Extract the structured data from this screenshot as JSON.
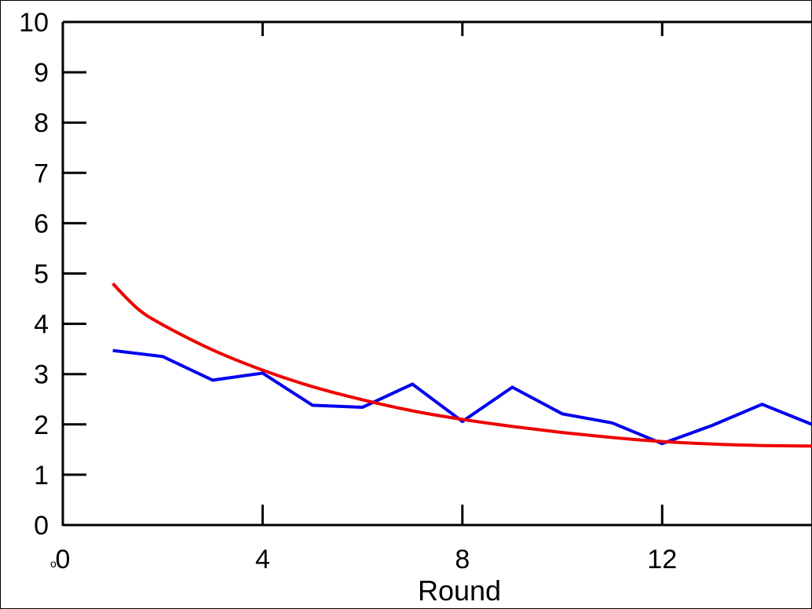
{
  "chart_data": {
    "type": "line",
    "title": "",
    "xlabel": "Round",
    "ylabel": "",
    "xlim": [
      0,
      15
    ],
    "ylim": [
      0,
      10
    ],
    "x_ticks": [
      0,
      4,
      8,
      12
    ],
    "x_tick_labels": [
      "0",
      "4",
      "8",
      "12"
    ],
    "y_ticks": [
      0,
      1,
      2,
      3,
      4,
      5,
      6,
      7,
      8,
      9,
      10
    ],
    "y_tick_labels": [
      "0",
      "1",
      "2",
      "3",
      "4",
      "5",
      "6",
      "7",
      "8",
      "9",
      "10"
    ],
    "minor_mark": "o",
    "grid": false,
    "legend": "none",
    "series": [
      {
        "color": "#0000ee",
        "style": "polyline",
        "x": [
          1,
          2,
          3,
          4,
          5,
          6,
          7,
          8,
          9,
          10,
          11,
          12,
          13,
          14,
          15
        ],
        "y": [
          3.47,
          3.35,
          2.88,
          3.02,
          2.38,
          2.34,
          2.8,
          2.06,
          2.74,
          2.21,
          2.03,
          1.62,
          1.98,
          2.4,
          2.0
        ]
      },
      {
        "color": "#ee0000",
        "style": "smooth",
        "x": [
          1,
          1.5,
          2,
          3,
          4,
          5,
          6,
          7,
          8,
          9,
          10,
          11,
          12,
          13,
          14,
          15
        ],
        "y": [
          4.8,
          4.3,
          3.98,
          3.48,
          3.08,
          2.75,
          2.49,
          2.27,
          2.1,
          1.96,
          1.84,
          1.74,
          1.66,
          1.61,
          1.58,
          1.57
        ]
      }
    ]
  }
}
